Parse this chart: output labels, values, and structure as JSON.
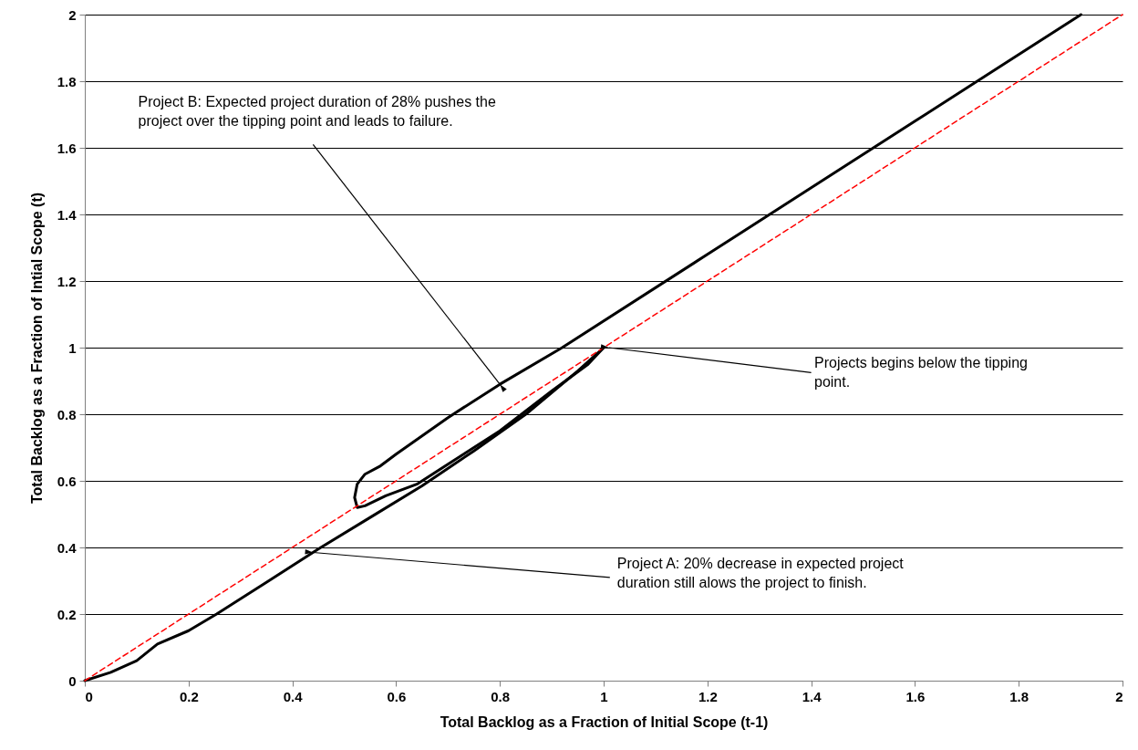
{
  "chart_data": {
    "type": "line",
    "xlabel": "Total Backlog as a Fraction of Initial Scope (t-1)",
    "ylabel": "Total Backlog as a Fraction of Intial Scope (t)",
    "xlim": [
      0,
      2
    ],
    "ylim": [
      0,
      2
    ],
    "xticks": [
      0,
      0.2,
      0.4,
      0.6,
      0.8,
      1,
      1.2,
      1.4,
      1.6,
      1.8,
      2
    ],
    "yticks": [
      0,
      0.2,
      0.4,
      0.6,
      0.8,
      1,
      1.2,
      1.4,
      1.6,
      1.8,
      2
    ],
    "grid": "y",
    "marker": "none",
    "series": [
      {
        "color": "#000000",
        "line_style": "solid",
        "x": [
          0,
          0.05,
          0.1,
          0.14,
          0.2,
          0.254,
          0.35,
          0.45,
          0.55,
          0.65,
          0.75,
          0.85,
          0.95,
          1
        ],
        "values": [
          0,
          0.025,
          0.06,
          0.11,
          0.15,
          0.2,
          0.295,
          0.395,
          0.49,
          0.585,
          0.69,
          0.8,
          0.93,
          1
        ]
      },
      {
        "color": "#000000",
        "line_style": "solid",
        "x": [
          1,
          0.97,
          0.9,
          0.8,
          0.7,
          0.64,
          0.58,
          0.54,
          0.525,
          0.52,
          0.525,
          0.54,
          0.57,
          0.6,
          0.7,
          0.8,
          0.92,
          1.2,
          1.4,
          1.6,
          1.8,
          1.92
        ],
        "values": [
          1,
          0.95,
          0.87,
          0.75,
          0.65,
          0.59,
          0.555,
          0.525,
          0.52,
          0.55,
          0.59,
          0.62,
          0.645,
          0.68,
          0.79,
          0.89,
          1.0,
          1.28,
          1.48,
          1.68,
          1.88,
          2
        ]
      },
      {
        "color": "#ff0000",
        "line_style": "dashed",
        "x": [
          0,
          2
        ],
        "values": [
          0,
          2
        ]
      }
    ],
    "annotations": [
      {
        "text": "Project B:  Expected project duration of 28% pushes the project over the tipping point and leads to failure.",
        "x": 0.8,
        "y": 0.89
      },
      {
        "text": "Projects begins below the tipping point.",
        "x": 1.01,
        "y": 1.0
      },
      {
        "text": "Project A:  20% decrease in expected project duration still alows the project to finish.",
        "x": 0.44,
        "y": 0.385
      }
    ]
  }
}
